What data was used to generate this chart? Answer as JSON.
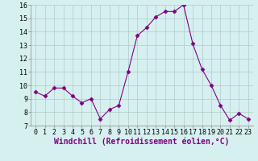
{
  "x": [
    0,
    1,
    2,
    3,
    4,
    5,
    6,
    7,
    8,
    9,
    10,
    11,
    12,
    13,
    14,
    15,
    16,
    17,
    18,
    19,
    20,
    21,
    22,
    23
  ],
  "y": [
    9.5,
    9.2,
    9.8,
    9.8,
    9.2,
    8.7,
    9.0,
    7.5,
    8.2,
    8.5,
    11.0,
    13.7,
    14.3,
    15.1,
    15.5,
    15.5,
    16.0,
    13.1,
    11.2,
    10.0,
    8.5,
    7.4,
    7.9,
    7.5
  ],
  "xlim": [
    -0.5,
    23.5
  ],
  "ylim": [
    7,
    16
  ],
  "yticks": [
    7,
    8,
    9,
    10,
    11,
    12,
    13,
    14,
    15,
    16
  ],
  "xticks": [
    0,
    1,
    2,
    3,
    4,
    5,
    6,
    7,
    8,
    9,
    10,
    11,
    12,
    13,
    14,
    15,
    16,
    17,
    18,
    19,
    20,
    21,
    22,
    23
  ],
  "xlabel": "Windchill (Refroidissement éolien,°C)",
  "line_color": "#800080",
  "marker": "D",
  "marker_size": 2.5,
  "bg_color": "#d6f0f0",
  "grid_color": "#b0c8c8",
  "tick_fontsize": 6,
  "xlabel_fontsize": 7
}
